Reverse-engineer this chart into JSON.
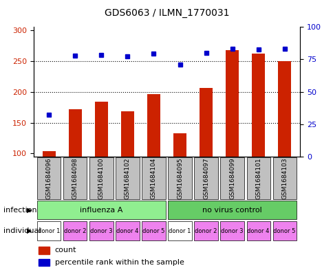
{
  "title": "GDS6063 / ILMN_1770031",
  "samples": [
    "GSM1684096",
    "GSM1684098",
    "GSM1684100",
    "GSM1684102",
    "GSM1684104",
    "GSM1684095",
    "GSM1684097",
    "GSM1684099",
    "GSM1684101",
    "GSM1684103"
  ],
  "counts": [
    104,
    172,
    184,
    168,
    196,
    133,
    206,
    268,
    262,
    250
  ],
  "percentiles": [
    163,
    259,
    260,
    258,
    262,
    244,
    263,
    270,
    269,
    270
  ],
  "ylim_left": [
    95,
    305
  ],
  "yticks_left": [
    100,
    150,
    200,
    250,
    300
  ],
  "ylim_right": [
    0,
    100
  ],
  "yticks_right": [
    0,
    25,
    50,
    75,
    100
  ],
  "infection_groups": [
    {
      "label": "influenza A",
      "start": 0,
      "end": 5,
      "color": "#90EE90"
    },
    {
      "label": "no virus control",
      "start": 5,
      "end": 10,
      "color": "#66CC66"
    }
  ],
  "donors": [
    "donor 1",
    "donor 2",
    "donor 3",
    "donor 4",
    "donor 5",
    "donor 1",
    "donor 2",
    "donor 3",
    "donor 4",
    "donor 5"
  ],
  "donor_colors": [
    "#FFFFFF",
    "#EE82EE",
    "#EE82EE",
    "#EE82EE",
    "#EE82EE",
    "#FFFFFF",
    "#EE82EE",
    "#EE82EE",
    "#EE82EE",
    "#EE82EE"
  ],
  "bar_color": "#CC2200",
  "dot_color": "#0000CC",
  "grid_color": "#000000",
  "tick_label_color_left": "#CC2200",
  "tick_label_color_right": "#0000CC",
  "sample_box_color": "#C0C0C0",
  "infection_label": "infection",
  "individual_label": "individual",
  "legend_count": "count",
  "legend_percentile": "percentile rank within the sample"
}
